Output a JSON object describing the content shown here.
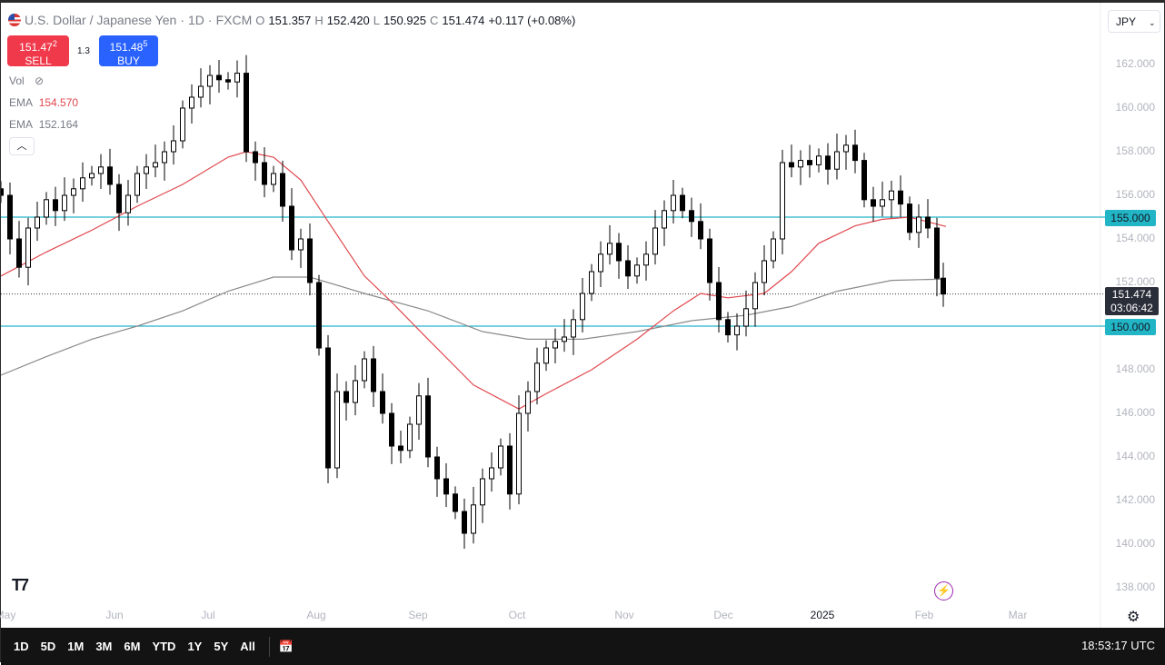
{
  "header": {
    "symbol": "U.S. Dollar / Japanese Yen",
    "interval": "1D",
    "source": "FXCM",
    "open_label": "O",
    "open": "151.357",
    "high_label": "H",
    "high": "152.420",
    "low_label": "L",
    "low": "150.925",
    "close_label": "C",
    "close": "151.474",
    "change": "+0.117 (+0.08%)"
  },
  "trade": {
    "sell_price": "151.47",
    "sell_sup": "2",
    "sell_label": "SELL",
    "spread": "1.3",
    "buy_price": "151.48",
    "buy_sup": "5",
    "buy_label": "BUY"
  },
  "legend": {
    "vol": "Vol",
    "ema1_label": "EMA",
    "ema1_value": "154.570",
    "ema2_label": "EMA",
    "ema2_value": "152.164"
  },
  "currency": "JPY",
  "current": {
    "price": "151.474",
    "countdown": "03:06:42"
  },
  "levels": [
    {
      "label": "155.000",
      "value": 155
    },
    {
      "label": "150.000",
      "value": 150
    }
  ],
  "colors": {
    "ema1": "#e0484f",
    "ema2": "#8a8a8a",
    "level": "#22b5c6",
    "up": "#ffffff",
    "down": "#000000"
  },
  "toolbar": {
    "ranges": [
      "1D",
      "5D",
      "1M",
      "3M",
      "6M",
      "YTD",
      "1Y",
      "5Y",
      "All"
    ],
    "clock": "18:53:17 UTC"
  },
  "chart_data": {
    "type": "candlestick",
    "ylim": [
      137,
      163
    ],
    "yticks": [
      "162.000",
      "160.000",
      "158.000",
      "156.000",
      "154.000",
      "152.000",
      "148.000",
      "146.000",
      "144.000",
      "142.000",
      "140.000",
      "138.000"
    ],
    "xticks": [
      "May",
      "Jun",
      "Jul",
      "Aug",
      "Sep",
      "Oct",
      "Nov",
      "Dec",
      "2025",
      "Feb",
      "Mar"
    ],
    "closes": [
      156,
      154,
      152.7,
      154.5,
      155,
      155.8,
      155.3,
      156,
      156.3,
      156.8,
      157,
      157.3,
      156.5,
      155.2,
      156,
      157,
      157.3,
      157.5,
      158,
      158.5,
      160,
      160.5,
      161,
      161.5,
      161.3,
      161.2,
      161.6,
      158,
      157.5,
      156.5,
      157,
      155.5,
      153.5,
      154,
      152,
      149,
      143.5,
      147,
      146.5,
      147.5,
      148.5,
      147,
      146,
      144.5,
      144.3,
      145.5,
      146.8,
      144,
      143,
      142.3,
      141.5,
      140.5,
      141.8,
      143,
      143.5,
      144.5,
      142.3,
      146,
      147,
      148.3,
      149,
      149.3,
      149.5,
      150.3,
      151.5,
      152.5,
      153.3,
      153.8,
      153,
      152.3,
      152.8,
      153.3,
      154.5,
      155.3,
      156,
      155.3,
      154.8,
      154,
      152,
      150.3,
      149.6,
      150,
      150.8,
      152,
      153,
      154,
      157.5,
      157.3,
      157.6,
      157.4,
      157.8,
      157.2,
      158,
      158.3,
      157.6,
      155.8,
      155.5,
      155.8,
      156.2,
      155.6,
      154.3,
      155,
      154.5,
      152.2,
      151.474
    ],
    "ema1": [
      [
        0,
        152.3
      ],
      [
        5,
        153.4
      ],
      [
        10,
        154.4
      ],
      [
        15,
        155.5
      ],
      [
        20,
        156.5
      ],
      [
        25,
        157.75
      ],
      [
        27,
        158
      ],
      [
        30,
        157.75
      ],
      [
        33,
        156.7
      ],
      [
        36,
        154.8
      ],
      [
        40,
        152.3
      ],
      [
        43,
        151.1
      ],
      [
        47,
        149.4
      ],
      [
        52,
        147.3
      ],
      [
        57,
        146.2
      ],
      [
        60,
        146.9
      ],
      [
        65,
        148
      ],
      [
        70,
        149.4
      ],
      [
        74,
        150.7
      ],
      [
        77,
        151.5
      ],
      [
        80,
        151.3
      ],
      [
        84,
        151.5
      ],
      [
        87,
        152.5
      ],
      [
        90,
        153.8
      ],
      [
        94,
        154.6
      ],
      [
        97,
        154.9
      ],
      [
        100,
        155
      ],
      [
        104,
        154.57
      ]
    ],
    "ema2": [
      [
        0,
        147.75
      ],
      [
        5,
        148.6
      ],
      [
        10,
        149.4
      ],
      [
        15,
        150
      ],
      [
        20,
        150.7
      ],
      [
        25,
        151.6
      ],
      [
        30,
        152.25
      ],
      [
        34,
        152.25
      ],
      [
        40,
        151.5
      ],
      [
        47,
        150.7
      ],
      [
        53,
        149.75
      ],
      [
        58,
        149.4
      ],
      [
        64,
        149.4
      ],
      [
        70,
        149.75
      ],
      [
        76,
        150.25
      ],
      [
        82,
        150.5
      ],
      [
        87,
        150.9
      ],
      [
        92,
        151.6
      ],
      [
        98,
        152.1
      ],
      [
        104,
        152.164
      ]
    ]
  }
}
